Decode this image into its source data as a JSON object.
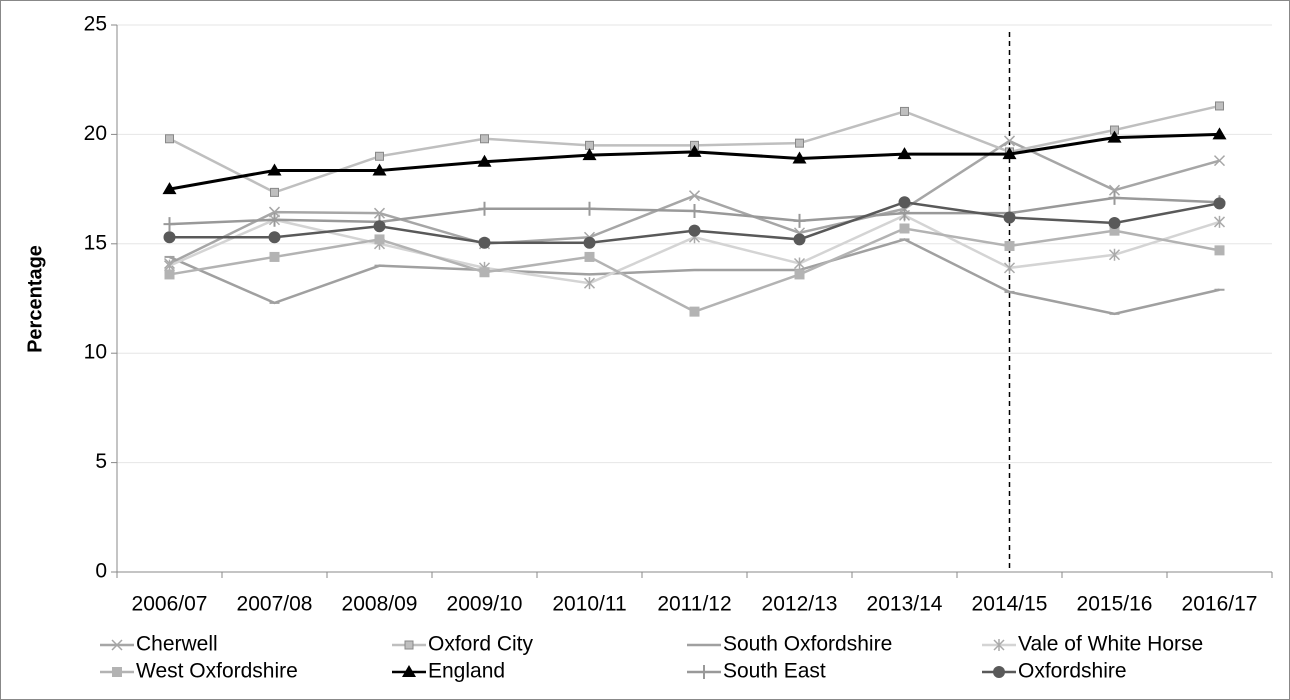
{
  "chart_data": {
    "type": "line",
    "y_label": "Percentage",
    "categories": [
      "2006/07",
      "2007/08",
      "2008/09",
      "2009/10",
      "2010/11",
      "2011/12",
      "2012/13",
      "2013/14",
      "2014/15",
      "2015/16",
      "2016/17"
    ],
    "ylim": [
      0,
      25
    ],
    "yticks": [
      0,
      5,
      10,
      15,
      20,
      25
    ],
    "grid": true,
    "vline_category": "2014/15",
    "series": [
      {
        "name": "Cherwell",
        "color": "#a6a6a6",
        "marker": "x",
        "values": [
          14.1,
          16.45,
          16.4,
          15.0,
          15.3,
          17.2,
          15.5,
          16.6,
          19.7,
          17.45,
          18.8
        ]
      },
      {
        "name": "Oxford City",
        "color": "#bfbfbf",
        "marker": "square-outline",
        "values": [
          19.8,
          17.35,
          19.0,
          19.8,
          19.5,
          19.5,
          19.6,
          21.05,
          19.2,
          20.2,
          21.3
        ]
      },
      {
        "name": "South Oxfordshire",
        "color": "#a0a0a0",
        "marker": "dash",
        "values": [
          14.4,
          12.3,
          14.0,
          13.8,
          13.6,
          13.8,
          13.8,
          15.2,
          12.8,
          11.8,
          12.9
        ]
      },
      {
        "name": "Vale of White Horse",
        "color": "#d4d4d4",
        "marker": "asterisk",
        "values": [
          14.0,
          16.1,
          15.0,
          13.9,
          13.2,
          15.3,
          14.1,
          16.3,
          13.9,
          14.5,
          16.0
        ]
      },
      {
        "name": "West Oxfordshire",
        "color": "#b3b3b3",
        "marker": "square",
        "values": [
          13.6,
          14.4,
          15.2,
          13.7,
          14.4,
          11.9,
          13.6,
          15.7,
          14.9,
          15.6,
          14.7
        ]
      },
      {
        "name": "England",
        "color": "#000000",
        "marker": "triangle",
        "values": [
          17.5,
          18.35,
          18.35,
          18.75,
          19.05,
          19.2,
          18.9,
          19.1,
          19.1,
          19.85,
          20.0
        ]
      },
      {
        "name": "South East",
        "color": "#999999",
        "marker": "plus",
        "values": [
          15.9,
          16.1,
          16.0,
          16.6,
          16.6,
          16.5,
          16.05,
          16.4,
          16.4,
          17.1,
          16.9
        ]
      },
      {
        "name": "Oxfordshire",
        "color": "#595959",
        "marker": "circle",
        "values": [
          15.3,
          15.3,
          15.8,
          15.05,
          15.05,
          15.6,
          15.2,
          16.9,
          16.2,
          15.95,
          16.85
        ]
      }
    ]
  }
}
